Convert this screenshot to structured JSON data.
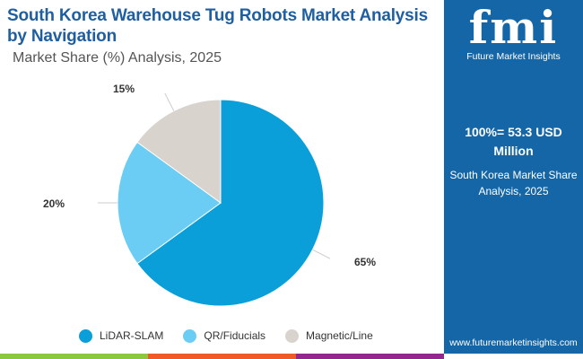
{
  "chart_data": {
    "type": "pie",
    "title": "South Korea Warehouse Tug Robots Market Analysis by Navigation",
    "subtitle": "Market Share (%) Analysis, 2025",
    "categories": [
      "LiDAR-SLAM",
      "QR/Fiducials",
      "Magnetic/Line"
    ],
    "values": [
      65,
      20,
      15
    ],
    "labels": [
      "65%",
      "20%",
      "15%"
    ],
    "colors": [
      "#0a9fd9",
      "#6bcdf3",
      "#d9d3ce"
    ],
    "legend": "bottom"
  },
  "panel": {
    "logo": "fmi",
    "logo_sub": "Future Market Insights",
    "total": "100%= 53.3 USD Million",
    "desc": "South Korea Market Share Analysis, 2025",
    "url": "www.futuremarketinsights.com"
  }
}
